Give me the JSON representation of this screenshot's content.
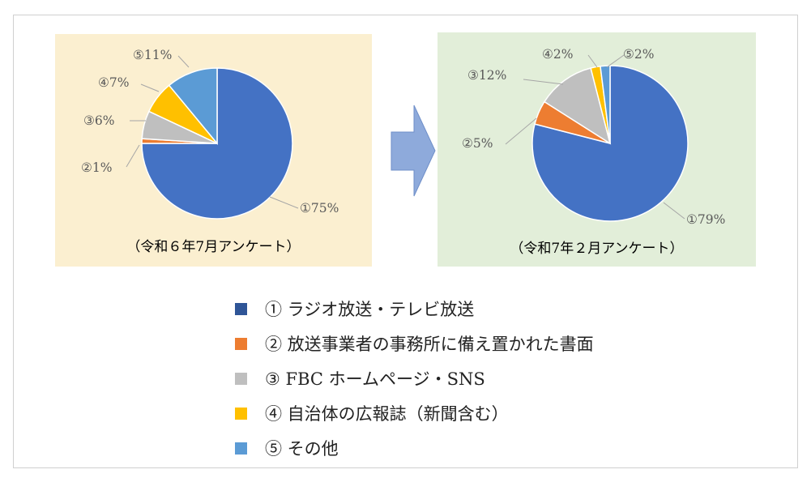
{
  "chart_data": [
    {
      "type": "pie",
      "title": "（令和６年7月アンケート）",
      "categories": [
        "①",
        "②",
        "③",
        "④",
        "⑤"
      ],
      "values": [
        75,
        1,
        6,
        7,
        11
      ],
      "data_labels": [
        "①75%",
        "②1%",
        "③6%",
        "④7%",
        "⑤11%"
      ],
      "background": "#fbefd0"
    },
    {
      "type": "pie",
      "title": "（令和7年２月アンケート）",
      "categories": [
        "①",
        "②",
        "③",
        "④",
        "⑤"
      ],
      "values": [
        79,
        5,
        12,
        2,
        2
      ],
      "data_labels": [
        "①79%",
        "②5%",
        "③12%",
        "④2%",
        "⑤2%"
      ],
      "background": "#e2eed9"
    }
  ],
  "colors": [
    "#4472c4",
    "#ed7d31",
    "#bfbfbf",
    "#ffc000",
    "#5b9bd5"
  ],
  "arrow": {
    "fill": "#8eaadb",
    "stroke": "#6f8fc9"
  },
  "legend": {
    "items": [
      {
        "label": "①  ラジオ放送・テレビ放送",
        "color": "#2f5597"
      },
      {
        "label": "②  放送事業者の事務所に備え置かれた書面",
        "color": "#ed7d31"
      },
      {
        "label": "③  FBC ホームページ・SNS",
        "color": "#bfbfbf"
      },
      {
        "label": "④  自治体の広報誌（新聞含む）",
        "color": "#ffc000"
      },
      {
        "label": "⑤  その他",
        "color": "#5b9bd5"
      }
    ]
  }
}
